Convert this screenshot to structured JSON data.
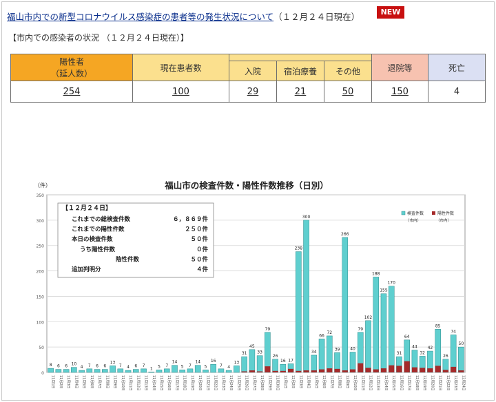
{
  "header": {
    "title_link": "福山市内での新型コロナウイルス感染症の患者等の発生状況について",
    "title_suffix": "（１２月２４日現在）",
    "new_badge": "NEW",
    "subtitle": "【市内での感染者の状況 （１２月２４日現在）】"
  },
  "stats_table": {
    "positive_label_1": "陽性者",
    "positive_label_2": "（延人数）",
    "current_label": "現在患者数",
    "hospital_label": "入院",
    "hotel_label": "宿泊療養",
    "other_label": "その他",
    "discharged_label": "退院等",
    "death_label": "死亡",
    "positive_value": "254",
    "current_value": "100",
    "hospital_value": "29",
    "hotel_value": "21",
    "other_value": "50",
    "discharged_value": "150",
    "death_value": "4"
  },
  "colors": {
    "orange": "#f5a623",
    "light_yellow": "#fbe08e",
    "peach": "#f7c2b0",
    "lavender": "#dbe0f3",
    "tests_bar": "#5fcfcf",
    "positive_bar": "#a52a2a",
    "link": "#0a2f8c",
    "badge": "#c81010"
  },
  "chart_data": {
    "type": "bar",
    "title": "福山市の検査件数・陽性件数推移（日別）",
    "ylabel": "（件）",
    "ylim": [
      0,
      350
    ],
    "yticks": [
      0,
      50,
      100,
      150,
      200,
      250,
      300,
      350
    ],
    "grid": true,
    "legend_position": "top-right",
    "categories": [
      "11月1日",
      "11月2日",
      "11月3日",
      "11月4日",
      "11月5日",
      "11月6日",
      "11月7日",
      "11月8日",
      "11月9日",
      "11月10日",
      "11月11日",
      "11月12日",
      "11月13日",
      "11月14日",
      "11月15日",
      "11月16日",
      "11月17日",
      "11月18日",
      "11月19日",
      "11月20日",
      "11月21日",
      "11月22日",
      "11月23日",
      "11月24日",
      "11月25日",
      "11月26日",
      "11月27日",
      "11月28日",
      "11月29日",
      "11月30日",
      "12月1日",
      "12月2日",
      "12月3日",
      "12月4日",
      "12月5日",
      "12月6日",
      "12月7日",
      "12月8日",
      "12月9日",
      "12月10日",
      "12月11日",
      "12月12日",
      "12月13日",
      "12月14日",
      "12月15日",
      "12月16日",
      "12月17日",
      "12月18日",
      "12月19日",
      "12月20日",
      "12月21日",
      "12月22日",
      "12月23日",
      "12月24日"
    ],
    "series": [
      {
        "name": "検査件数",
        "name_sub": "（市内）",
        "color": "#5fcfcf",
        "values": [
          8,
          6,
          6,
          10,
          4,
          7,
          6,
          6,
          13,
          7,
          4,
          6,
          7,
          1,
          5,
          7,
          14,
          5,
          7,
          14,
          5,
          16,
          7,
          4,
          13,
          31,
          45,
          33,
          79,
          26,
          16,
          17,
          238,
          300,
          34,
          66,
          72,
          39,
          266,
          40,
          79,
          102,
          188,
          155,
          170,
          31,
          64,
          44,
          32,
          42,
          85,
          26,
          74,
          50
        ]
      },
      {
        "name": "陽性件数",
        "name_sub": "（市内）",
        "color": "#a52a2a",
        "values": [
          0,
          0,
          0,
          0,
          0,
          0,
          0,
          0,
          0,
          0,
          0,
          0,
          0,
          0,
          0,
          0,
          0,
          0,
          0,
          0,
          0,
          0,
          0,
          0,
          0,
          2,
          4,
          2,
          12,
          3,
          3,
          7,
          3,
          4,
          4,
          6,
          8,
          7,
          4,
          6,
          18,
          9,
          6,
          8,
          14,
          13,
          22,
          10,
          9,
          8,
          13,
          5,
          11,
          4
        ]
      }
    ],
    "summary_box": {
      "title": "【１２月２４日】",
      "rows": [
        {
          "label": "これまでの総検査件数",
          "value": "６，８６９件"
        },
        {
          "label": "これまでの陽性件数",
          "value": "２５０件"
        },
        {
          "label": "本日の検査件数",
          "value": "５０件"
        },
        {
          "label": "うち陽性件数",
          "value": "０件"
        },
        {
          "label": "陰性件数",
          "value": "５０件"
        },
        {
          "label": "追加判明分",
          "value": "４件"
        }
      ]
    }
  }
}
